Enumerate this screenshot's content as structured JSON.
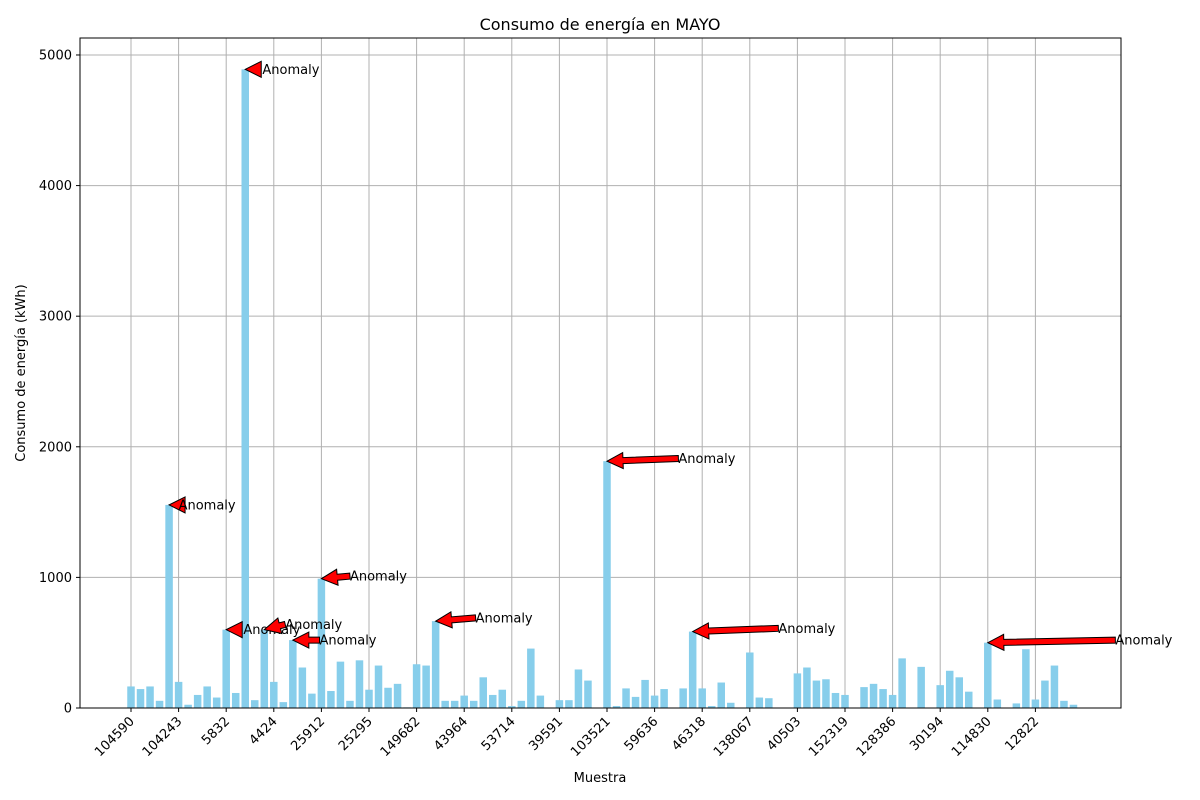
{
  "chart_data": {
    "type": "bar",
    "title": "Consumo de energía en MAYO",
    "xlabel": "Muestra",
    "ylabel": "Consumo de energía (kWh)",
    "ylim": [
      0,
      5130
    ],
    "grid": true,
    "bar_color": "#87ceeb",
    "arrow_color": "#ff0000",
    "yticks": [
      0,
      1000,
      2000,
      3000,
      4000,
      5000
    ],
    "xtick_labels": [
      "104590",
      "104243",
      "5832",
      "4424",
      "25912",
      "25295",
      "149682",
      "43964",
      "53714",
      "39591",
      "103521",
      "59636",
      "46318",
      "138067",
      "40503",
      "152319",
      "128386",
      "30194",
      "114830",
      "12822"
    ],
    "values": [
      165,
      145,
      165,
      55,
      1555,
      200,
      25,
      100,
      165,
      80,
      600,
      115,
      4890,
      60,
      600,
      200,
      45,
      520,
      310,
      110,
      990,
      130,
      355,
      55,
      365,
      140,
      325,
      155,
      185,
      5,
      335,
      325,
      665,
      55,
      55,
      95,
      55,
      235,
      100,
      140,
      15,
      55,
      455,
      95,
      0,
      60,
      60,
      295,
      210,
      0,
      1890,
      15,
      150,
      85,
      215,
      95,
      145,
      0,
      150,
      585,
      150,
      15,
      195,
      40,
      0,
      425,
      80,
      75,
      0,
      0,
      265,
      310,
      210,
      220,
      115,
      100,
      0,
      160,
      185,
      145,
      100,
      380,
      0,
      315,
      0,
      175,
      285,
      235,
      125,
      0,
      500,
      65,
      0,
      35,
      450,
      65,
      210,
      325,
      55,
      25
    ],
    "annotations": [
      {
        "text": "Anomaly",
        "index": 4,
        "value": 1555,
        "text_x": 5.0,
        "text_y": 1555
      },
      {
        "text": "Anomaly",
        "index": 12,
        "value": 4890,
        "text_x": 13.8,
        "text_y": 4890
      },
      {
        "text": "Anomaly",
        "index": 10,
        "value": 600,
        "text_x": 11.8,
        "text_y": 600
      },
      {
        "text": "Anomaly",
        "index": 14,
        "value": 600,
        "text_x": 16.2,
        "text_y": 640
      },
      {
        "text": "Anomaly",
        "index": 17,
        "value": 520,
        "text_x": 19.8,
        "text_y": 520
      },
      {
        "text": "Anomaly",
        "index": 20,
        "value": 990,
        "text_x": 23.0,
        "text_y": 1010
      },
      {
        "text": "Anomaly",
        "index": 32,
        "value": 665,
        "text_x": 36.2,
        "text_y": 690
      },
      {
        "text": "Anomaly",
        "index": 50,
        "value": 1890,
        "text_x": 57.5,
        "text_y": 1910
      },
      {
        "text": "Anomaly",
        "index": 59,
        "value": 585,
        "text_x": 68.0,
        "text_y": 610
      },
      {
        "text": "Anomaly",
        "index": 90,
        "value": 500,
        "text_x": 103.4,
        "text_y": 520
      }
    ]
  }
}
